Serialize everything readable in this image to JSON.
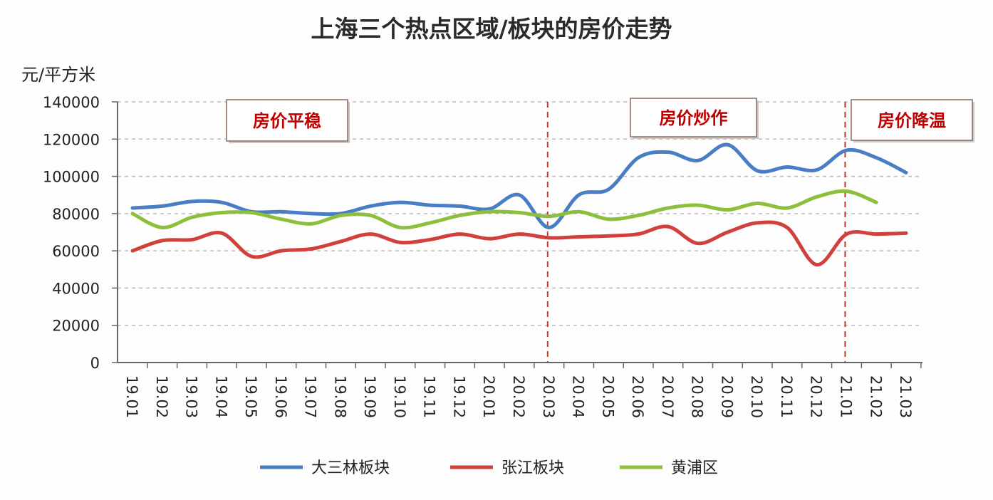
{
  "chart_data": {
    "type": "line",
    "title": "上海三个热点区域/板块的房价走势",
    "ylabel": "元/平方米",
    "xlabel": "",
    "ylim": [
      0,
      140000
    ],
    "yticks": [
      "0",
      "20000",
      "40000",
      "60000",
      "80000",
      "100000",
      "120000",
      "140000"
    ],
    "grid": true,
    "legend_position": "bottom",
    "categories": [
      "19.01",
      "19.02",
      "19.03",
      "19.04",
      "19.05",
      "19.06",
      "19.07",
      "19.08",
      "19.09",
      "19.10",
      "19.11",
      "19.12",
      "20.01",
      "20.02",
      "20.03",
      "20.04",
      "20.05",
      "20.06",
      "20.07",
      "20.08",
      "20.09",
      "20.10",
      "20.11",
      "20.12",
      "21.01",
      "21.02",
      "21.03"
    ],
    "series": [
      {
        "name": "大三林板块",
        "color": "#4a7ec4",
        "values": [
          83000,
          84000,
          86500,
          86000,
          81000,
          81000,
          80000,
          80000,
          84000,
          86000,
          84500,
          84000,
          82500,
          90000,
          72500,
          90000,
          93000,
          110000,
          113000,
          108500,
          117000,
          103000,
          105000,
          103500,
          114000,
          110000,
          102000
        ]
      },
      {
        "name": "张江板块",
        "color": "#d0403c",
        "values": [
          60000,
          65500,
          66000,
          69500,
          57000,
          60000,
          61000,
          65000,
          69000,
          64500,
          66000,
          69000,
          66500,
          69000,
          67000,
          67500,
          68000,
          69000,
          73000,
          64000,
          70000,
          75000,
          72500,
          52500,
          69000,
          69000,
          69500
        ]
      },
      {
        "name": "黄浦区",
        "color": "#8dbf3d",
        "values": [
          80000,
          72500,
          78000,
          80500,
          80500,
          77000,
          74500,
          79000,
          79000,
          72500,
          75000,
          79000,
          81000,
          80500,
          78500,
          81000,
          77000,
          79000,
          83000,
          84500,
          82000,
          85500,
          83000,
          89000,
          92000,
          86000,
          null
        ]
      }
    ],
    "annotations": [
      {
        "text": "房价平稳",
        "at": "19.04"
      },
      {
        "text": "房价炒作",
        "at": "20.06"
      },
      {
        "text": "房价降温",
        "at": "21.02"
      }
    ],
    "reference_lines": [
      {
        "at": "20.03",
        "color": "#c0392b"
      },
      {
        "at": "21.01",
        "color": "#c0392b"
      }
    ]
  }
}
